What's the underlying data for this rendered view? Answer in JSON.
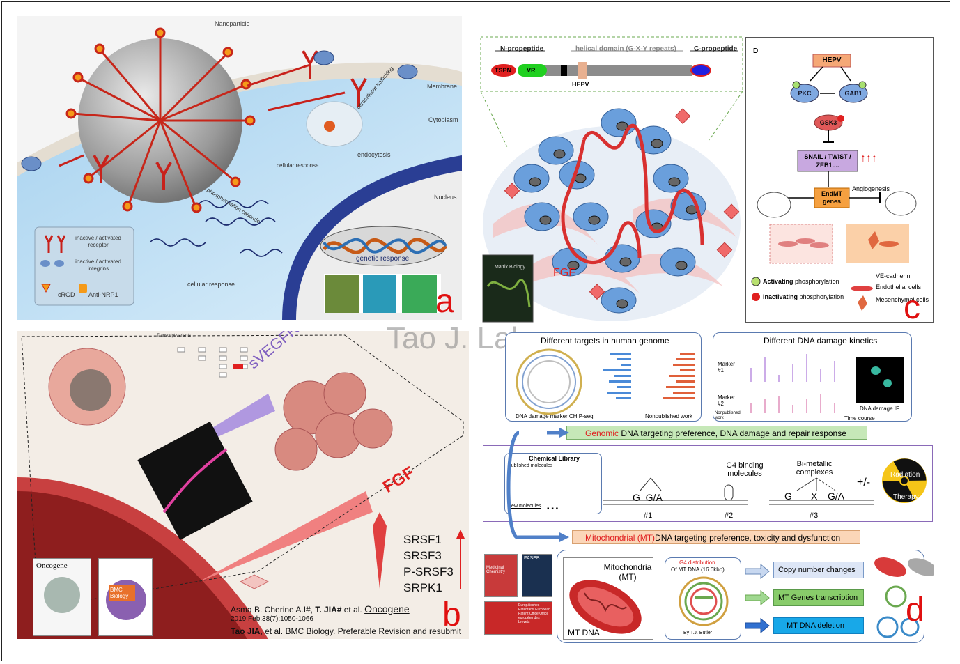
{
  "watermark": "Tao J. Lab",
  "panel_a": {
    "letter": "a",
    "nanoparticle": "Nanoparticle",
    "membrane": "Membrane",
    "cytoplasm": "Cytoplasm",
    "nucleus": "Nucleus",
    "trafficking": "intracellular trafficking",
    "endocytosis": "endocytosis",
    "cellular_response_top": "cellular response",
    "phosphorylation": "phosphorylation cascade",
    "genetic_response": "genetic response",
    "cellular_response_bottom": "cellular response",
    "legend": {
      "receptor": "inactive / activated receptor",
      "integrins": "inactive / activated integrins",
      "crgd": "cRGD",
      "anti_nrp1": "Anti-NRP1"
    }
  },
  "panel_c": {
    "letter": "c",
    "n_propeptide": "N-propeptide",
    "helical": "helical domain (G-X-Y repeats)",
    "c_propeptide": "C-propeptide",
    "tspn": "TSPN",
    "vr": "VR",
    "hepv_marker": "HEPV",
    "fgf": "FGF",
    "journal": "Matrix Biology",
    "pathway": {
      "d_label": "D",
      "hepv": "HEPV",
      "pkc": "PKC",
      "gab1": "GAB1",
      "gsk3": "GSK3",
      "snail": "SNAIL / TWIST / ZEB1....",
      "arrows": "↑↑↑",
      "endmt": "EndMT genes",
      "angiogenesis": "Angiogenesis",
      "activating": "Activating",
      "activating_rest": "phosphorylation",
      "inactivating": "Inactivating",
      "inactivating_rest": "phosphorylation",
      "ve_cadherin": "VE-cadherin",
      "endothelial": "Endothelial cells",
      "mesenchymal": "Mesenchymal cells"
    }
  },
  "panel_b": {
    "letter": "b",
    "svegfr1": "sVEGFR1",
    "fgf": "FGF",
    "transcript_title": "Transcript variants",
    "factors": [
      "SRSF1",
      "SRSF3",
      "P-SRSF3",
      "SRPK1"
    ],
    "citation1_authors": "Asma B. Cherine A.I#, ",
    "citation1_bold": "T. JIA#",
    "citation1_etal": " et al. ",
    "citation1_journal": "Oncogene",
    "citation1_ref": "2019 Feb;38(7):1050-1066",
    "citation2_bold": "Tao JIA",
    "citation2_etal": ", et al. ",
    "citation2_journal": "BMC Biology.",
    "citation2_status": " Preferable Revision and resubmit",
    "cover1": "Oncogene",
    "cover2": "BMC Biology"
  },
  "panel_d": {
    "letter": "d",
    "targets_title": "Different targets in human genome",
    "chip_label": "DNA damage marker CHIP-seq",
    "nonpub_label": "Nonpublished work",
    "kinetics_title": "Different DNA damage kinetics",
    "marker1": "Marker #1",
    "marker2": "Marker #2",
    "nonpub_work": "Nonpublished work",
    "time_course": "Time course",
    "dna_if": "DNA damage IF",
    "genomic_red": "Genomic",
    "genomic_rest": " DNA targeting preference, DNA damage and repair response",
    "chem_library": "Chemical Library",
    "published_molecules": "Published molecules",
    "new_molecules": "New molecules",
    "dots": "▪ ▪ ▪",
    "g4_binding": "G4 binding molecules",
    "bimetallic": "Bi-metallic complexes",
    "plus_minus": "+/-",
    "radiation": "Radiation",
    "therapy": "Therapy",
    "g_ga": "G  G/A",
    "n1": "#1",
    "n2": "#2",
    "n3": "#3",
    "g": "G",
    "x": "X",
    "ga": "G/A",
    "mito_red": "Mitochondrial",
    "mito_mid": " (MT)",
    "mito_rest": "DNA targeting preference, toxicity and dysfunction",
    "mitochondria": "Mitochondria (MT)",
    "mt_dna": "MT DNA",
    "g4_distribution": "G4 distribution",
    "g4_sub": "Of MT DNA (16.6kbp)",
    "butler": "By T.J. Butler",
    "copy_number": "Copy number changes",
    "mt_transcription": "MT Genes transcription",
    "mt_deletion": "MT DNA deletion",
    "cover_medchem": "Medicinal Chemistry",
    "cover_faseb": "FASEB",
    "patent": "Europäisches Patentamt European Patent Office Office européen des brevets"
  }
}
